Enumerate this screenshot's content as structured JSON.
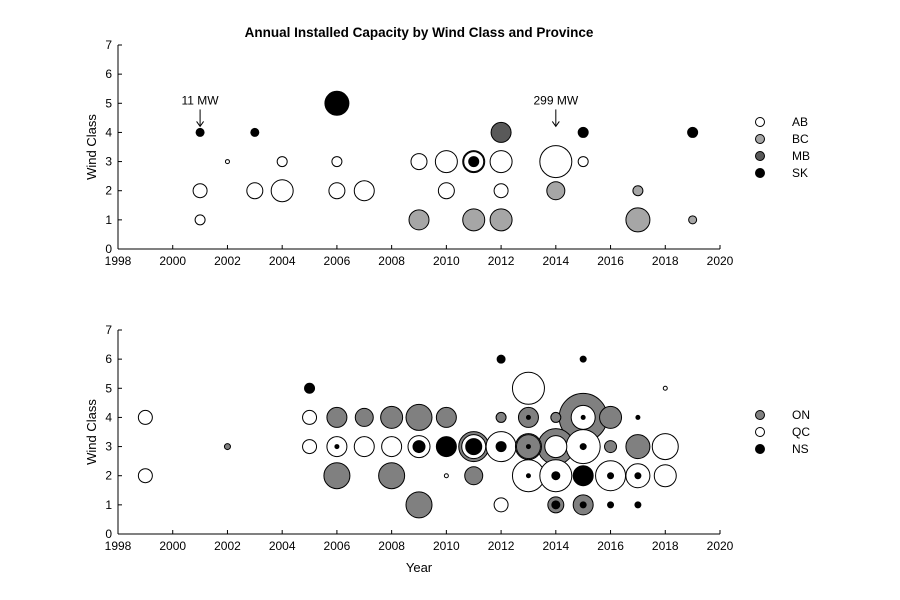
{
  "chart_data": [
    {
      "type": "scatter",
      "title": "Annual Installed Capacity by Wind Class and Province",
      "xlabel": "",
      "ylabel": "Wind Class",
      "xlim": [
        1998,
        2020
      ],
      "ylim": [
        0,
        7
      ],
      "xticks": [
        1998,
        2000,
        2002,
        2004,
        2006,
        2008,
        2010,
        2012,
        2014,
        2016,
        2018,
        2020
      ],
      "yticks": [
        0,
        1,
        2,
        3,
        4,
        5,
        6,
        7
      ],
      "grid": false,
      "legend_position": "right",
      "series": [
        {
          "name": "AB",
          "color": "#ffffff",
          "points": [
            [
              2001,
              1,
              5
            ],
            [
              2001,
              2,
              7
            ],
            [
              2002,
              3,
              2
            ],
            [
              2003,
              2,
              8
            ],
            [
              2004,
              2,
              11
            ],
            [
              2004,
              3,
              5
            ],
            [
              2006,
              2,
              8
            ],
            [
              2006,
              3,
              5
            ],
            [
              2007,
              2,
              10
            ],
            [
              2009,
              3,
              8
            ],
            [
              2010,
              2,
              8
            ],
            [
              2010,
              3,
              11
            ],
            [
              2011,
              3,
              10
            ],
            [
              2012,
              2,
              7
            ],
            [
              2012,
              3,
              11
            ],
            [
              2014,
              3,
              16
            ],
            [
              2015,
              3,
              5
            ]
          ]
        },
        {
          "name": "BC",
          "color": "#a6a6a6",
          "points": [
            [
              2009,
              1,
              10
            ],
            [
              2011,
              1,
              11
            ],
            [
              2012,
              1,
              11
            ],
            [
              2014,
              2,
              9
            ],
            [
              2017,
              1,
              12
            ],
            [
              2017,
              2,
              5
            ],
            [
              2019,
              1,
              4
            ]
          ]
        },
        {
          "name": "MB",
          "color": "#595959",
          "points": [
            [
              2011,
              3,
              11
            ],
            [
              2012,
              4,
              10
            ]
          ]
        },
        {
          "name": "SK",
          "color": "#000000",
          "points": [
            [
              2001,
              4,
              4
            ],
            [
              2003,
              4,
              4
            ],
            [
              2006,
              5,
              12
            ],
            [
              2011,
              3,
              5
            ],
            [
              2015,
              4,
              5
            ],
            [
              2019,
              4,
              5
            ]
          ]
        }
      ],
      "annotations": [
        {
          "text": "11 MW",
          "x": 2001,
          "y": 4
        },
        {
          "text": "299 MW",
          "x": 2014,
          "y": 4
        }
      ]
    },
    {
      "type": "scatter",
      "title": "",
      "xlabel": "Year",
      "ylabel": "Wind Class",
      "xlim": [
        1998,
        2020
      ],
      "ylim": [
        0,
        7
      ],
      "xticks": [
        1998,
        2000,
        2002,
        2004,
        2006,
        2008,
        2010,
        2012,
        2014,
        2016,
        2018,
        2020
      ],
      "yticks": [
        0,
        1,
        2,
        3,
        4,
        5,
        6,
        7
      ],
      "grid": false,
      "legend_position": "right",
      "series": [
        {
          "name": "ON",
          "color": "#808080",
          "points": [
            [
              2002,
              3,
              3
            ],
            [
              2006,
              2,
              13
            ],
            [
              2006,
              4,
              10
            ],
            [
              2007,
              4,
              9
            ],
            [
              2008,
              2,
              13
            ],
            [
              2008,
              4,
              11
            ],
            [
              2009,
              1,
              13
            ],
            [
              2009,
              4,
              13
            ],
            [
              2010,
              4,
              10
            ],
            [
              2011,
              2,
              9
            ],
            [
              2011,
              3,
              15
            ],
            [
              2012,
              4,
              5
            ],
            [
              2013,
              3,
              12
            ],
            [
              2013,
              4,
              10
            ],
            [
              2014,
              1,
              8
            ],
            [
              2014,
              3,
              18
            ],
            [
              2014,
              4,
              5
            ],
            [
              2015,
              1,
              10
            ],
            [
              2015,
              4,
              24
            ],
            [
              2016,
              3,
              6
            ],
            [
              2016,
              4,
              11
            ],
            [
              2017,
              3,
              12
            ]
          ]
        },
        {
          "name": "QC",
          "color": "#ffffff",
          "points": [
            [
              1999,
              2,
              7
            ],
            [
              1999,
              4,
              7
            ],
            [
              2005,
              3,
              7
            ],
            [
              2005,
              4,
              7
            ],
            [
              2006,
              3,
              10
            ],
            [
              2007,
              3,
              10
            ],
            [
              2008,
              3,
              10
            ],
            [
              2009,
              3,
              11
            ],
            [
              2010,
              2,
              2
            ],
            [
              2011,
              3,
              12
            ],
            [
              2012,
              1,
              7
            ],
            [
              2012,
              3,
              15
            ],
            [
              2013,
              2,
              16
            ],
            [
              2013,
              3,
              13
            ],
            [
              2013,
              5,
              16
            ],
            [
              2014,
              2,
              16
            ],
            [
              2014,
              3,
              11
            ],
            [
              2015,
              3,
              17
            ],
            [
              2015,
              4,
              12
            ],
            [
              2016,
              2,
              15
            ],
            [
              2017,
              2,
              12
            ],
            [
              2018,
              2,
              11
            ],
            [
              2018,
              3,
              13
            ],
            [
              2018,
              5,
              2
            ]
          ]
        },
        {
          "name": "NS",
          "color": "#000000",
          "points": [
            [
              2005,
              5,
              5
            ],
            [
              2006,
              3,
              2
            ],
            [
              2009,
              3,
              6
            ],
            [
              2010,
              3,
              10
            ],
            [
              2011,
              3,
              8
            ],
            [
              2012,
              3,
              5
            ],
            [
              2012,
              6,
              4
            ],
            [
              2013,
              2,
              2
            ],
            [
              2013,
              3,
              2
            ],
            [
              2013,
              4,
              2
            ],
            [
              2014,
              1,
              4
            ],
            [
              2014,
              2,
              4
            ],
            [
              2015,
              1,
              3
            ],
            [
              2015,
              2,
              10
            ],
            [
              2015,
              3,
              3
            ],
            [
              2015,
              4,
              2
            ],
            [
              2015,
              6,
              3
            ],
            [
              2016,
              1,
              3
            ],
            [
              2016,
              2,
              3
            ],
            [
              2017,
              1,
              3
            ],
            [
              2017,
              2,
              3
            ],
            [
              2017,
              4,
              2
            ]
          ]
        }
      ],
      "annotations": []
    }
  ]
}
